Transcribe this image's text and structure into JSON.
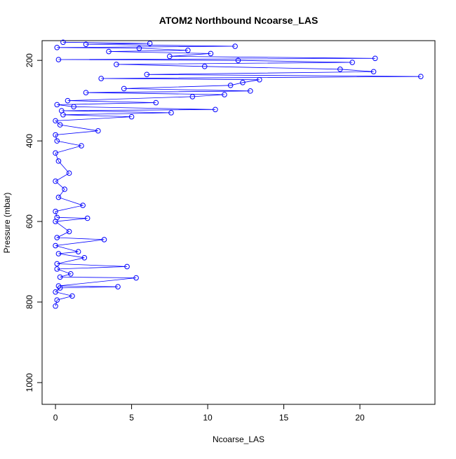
{
  "chart_data": {
    "type": "line",
    "title": "ATOM2 Northbound Ncoarse_LAS",
    "xlabel": "Ncoarse_LAS",
    "ylabel": "Pressure (mbar)",
    "color": "#0000ff",
    "markers": true,
    "x": [
      0,
      0.1,
      1.1,
      0,
      0.3,
      4.1,
      0.2,
      5.3,
      0.3,
      1.0,
      0.1,
      4.7,
      0.1,
      1.9,
      0.2,
      1.5,
      0,
      3.2,
      0.1,
      0.9,
      0,
      2.1,
      0.1,
      0,
      1.8,
      0.2,
      0.6,
      0,
      0.9,
      0.2,
      0,
      1.7,
      0.1,
      0,
      2.8,
      0.3,
      0,
      5.0,
      0.5,
      7.6,
      0.4,
      10.5,
      1.2,
      0.1,
      6.6,
      0.8,
      9.0,
      11.1,
      2.0,
      12.8,
      4.5,
      11.5,
      12.3,
      13.4,
      3.0,
      24.0,
      6.0,
      20.9,
      18.7,
      9.8,
      4.0,
      19.5,
      12.0,
      0.2,
      21.0,
      7.5,
      10.2,
      3.5,
      8.7,
      5.5,
      0.1,
      11.8,
      2.0,
      6.2,
      0.5
    ],
    "values": [
      810,
      795,
      785,
      775,
      765,
      762,
      760,
      740,
      738,
      730,
      718,
      712,
      705,
      690,
      680,
      675,
      660,
      645,
      640,
      625,
      600,
      592,
      590,
      575,
      560,
      540,
      520,
      500,
      480,
      450,
      430,
      412,
      400,
      385,
      375,
      360,
      350,
      340,
      335,
      330,
      325,
      322,
      315,
      310,
      305,
      300,
      290,
      285,
      280,
      276,
      270,
      262,
      255,
      248,
      245,
      240,
      235,
      228,
      222,
      215,
      210,
      205,
      200,
      198,
      195,
      190,
      183,
      178,
      175,
      170,
      168,
      165,
      160,
      158,
      155
    ],
    "xlim": [
      -0.88,
      24.93
    ],
    "ylim": [
      1054,
      151
    ],
    "xticks": [
      0,
      5,
      10,
      15,
      20
    ],
    "yticks": [
      200,
      400,
      600,
      800,
      1000
    ]
  }
}
